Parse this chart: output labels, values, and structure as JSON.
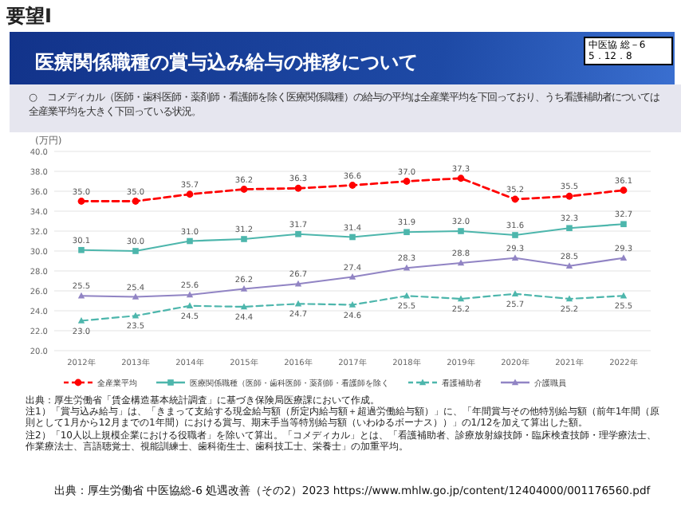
{
  "chart_data": {
    "type": "line",
    "title": "医療関係職種の賞与込み給与の推移について",
    "subtitle": "○　コメディカル（医師・歯科医師・薬剤師・看護師を除く医療関係職種）の給与の平均は全産業平均を下回っており、うち看護補助者については全産業平均を大きく下回っている状況。",
    "ylabel": "(万円)",
    "annotations": [
      "要望Ⅰ",
      "中医協 総－6\n5．12．8",
      "出典：厚生労働省「賃金構造基本統計調査」に基づき保険局医療課において作成。",
      "注1）「賞与込み給与」は、「きまって支給する現金給与額（所定内給与額＋超過労働給与額）」に、「年間賞与その他特別給与額（前年1年間（原則として1月から12月までの1年間）における賞与、期末手当等特別給与額（いわゆるボーナス））」の1/12を加えて算出した額。",
      "注2）「10人以上規模企業における役職者」を除いて算出。「コメディカル」とは、「看護補助者、診療放射線技師・臨床検査技師・理学療法士、作業療法士、言語聴覚士、視能訓練士、歯科衛生士、歯科技工士、栄養士」の加重平均。",
      "出典：厚生労働省 中医協総-6 処遇改善（その2）2023 https://www.mhlw.go.jp/content/12404000/001176560.pdf"
    ],
    "categories": [
      "2012年",
      "2013年",
      "2014年",
      "2015年",
      "2016年",
      "2017年",
      "2018年",
      "2019年",
      "2020年",
      "2021年",
      "2022年"
    ],
    "series": [
      {
        "name": "全産業平均",
        "color": "#ff0000",
        "marker": "circle",
        "line_style": "dashed",
        "values": [
          35.0,
          35.0,
          35.7,
          36.2,
          36.3,
          36.6,
          37.0,
          37.3,
          35.2,
          35.5,
          36.1
        ],
        "value_labels": [
          "35.0",
          "35.0",
          "35.7",
          "36.2",
          "36.3",
          "36.6",
          "37.0",
          "37.3",
          "35.2",
          "35.5",
          "36.1"
        ]
      },
      {
        "name": "医療関係職種（医師・歯科医師・薬剤師・看護師を除く",
        "color": "#4db6ac",
        "marker": "square",
        "line_style": "solid",
        "values": [
          30.1,
          30.0,
          31.0,
          31.2,
          31.7,
          31.4,
          31.9,
          32.0,
          31.6,
          32.3,
          32.7
        ],
        "value_labels": [
          "30.1",
          "30.0",
          "31.0",
          "31.2",
          "31.7",
          "31.4",
          "31.9",
          "32.0",
          "31.6",
          "32.3",
          "32.7"
        ]
      },
      {
        "name": "看護補助者",
        "color": "#4db6ac",
        "marker": "triangle",
        "line_style": "dashed",
        "values": [
          23.0,
          23.5,
          24.5,
          24.4,
          24.7,
          24.6,
          25.5,
          25.2,
          25.7,
          25.2,
          25.5
        ],
        "value_labels": [
          "23.0",
          "23.5",
          "24.5",
          "24.4",
          "24.7",
          "24.6",
          "25.5",
          "25.2",
          "25.7",
          "25.2",
          "25.5"
        ]
      },
      {
        "name": "介護職員",
        "color": "#9184c4",
        "marker": "triangle",
        "line_style": "solid",
        "values": [
          25.5,
          25.4,
          25.6,
          26.2,
          26.7,
          27.4,
          28.3,
          28.8,
          29.3,
          28.5,
          29.3
        ],
        "value_labels": [
          "25.5",
          "25.4",
          "25.6",
          "26.2",
          "26.7",
          "27.4",
          "28.3",
          "28.8",
          "29.3",
          "28.5",
          "29.3"
        ]
      }
    ],
    "ylim": [
      20,
      40
    ],
    "yticks": [
      {
        "value": 20,
        "label": "20.0"
      },
      {
        "value": 22,
        "label": "22.0"
      },
      {
        "value": 24,
        "label": "24.0"
      },
      {
        "value": 26,
        "label": "26.0"
      },
      {
        "value": 28,
        "label": "28.0"
      },
      {
        "value": 30,
        "label": "30.0"
      },
      {
        "value": 32,
        "label": "32.0"
      },
      {
        "value": 34,
        "label": "34.0"
      },
      {
        "value": 36,
        "label": "36.0"
      },
      {
        "value": 38,
        "label": "38.0"
      },
      {
        "value": 40,
        "label": "40.0"
      }
    ],
    "grid": "y",
    "legend": "bottom"
  }
}
